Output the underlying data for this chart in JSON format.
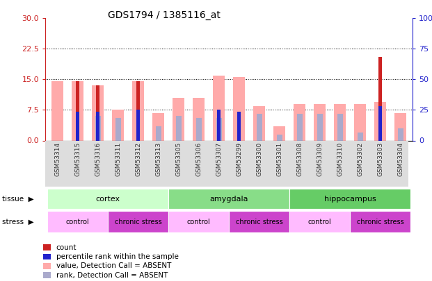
{
  "title": "GDS1794 / 1385116_at",
  "samples": [
    "GSM53314",
    "GSM53315",
    "GSM53316",
    "GSM53311",
    "GSM53312",
    "GSM53313",
    "GSM53305",
    "GSM53306",
    "GSM53307",
    "GSM53299",
    "GSM53300",
    "GSM53301",
    "GSM53308",
    "GSM53309",
    "GSM53310",
    "GSM53302",
    "GSM53303",
    "GSM53304"
  ],
  "pink_bars": [
    14.5,
    14.5,
    13.5,
    7.5,
    14.5,
    6.8,
    10.5,
    10.5,
    16.0,
    15.5,
    8.5,
    3.5,
    9.0,
    9.0,
    9.0,
    9.0,
    9.5,
    6.8
  ],
  "red_bars": [
    0,
    14.5,
    13.5,
    0,
    14.5,
    0,
    0,
    0,
    0,
    0,
    0,
    0,
    0,
    0,
    0,
    0,
    20.5,
    0
  ],
  "blue_bars": [
    0,
    7.0,
    7.0,
    0,
    7.5,
    0,
    0,
    0,
    7.5,
    7.0,
    0,
    0,
    0,
    0,
    0,
    0,
    8.5,
    0
  ],
  "lavender_bars": [
    0,
    0,
    6.0,
    5.5,
    0,
    3.5,
    6.0,
    5.5,
    5.5,
    0,
    6.5,
    1.5,
    6.5,
    6.5,
    6.5,
    2.0,
    0,
    3.0
  ],
  "ylim_left": [
    0,
    30
  ],
  "ylim_right": [
    0,
    100
  ],
  "yticks_left": [
    0,
    7.5,
    15,
    22.5,
    30
  ],
  "yticks_right": [
    0,
    25,
    50,
    75,
    100
  ],
  "tissue_groups": [
    {
      "label": "cortex",
      "start": 0,
      "end": 6,
      "color": "#ccffcc"
    },
    {
      "label": "amygdala",
      "start": 6,
      "end": 12,
      "color": "#88dd88"
    },
    {
      "label": "hippocampus",
      "start": 12,
      "end": 18,
      "color": "#66cc66"
    }
  ],
  "stress_groups": [
    {
      "label": "control",
      "start": 0,
      "end": 3,
      "color": "#ffbbff"
    },
    {
      "label": "chronic stress",
      "start": 3,
      "end": 6,
      "color": "#cc44cc"
    },
    {
      "label": "control",
      "start": 6,
      "end": 9,
      "color": "#ffbbff"
    },
    {
      "label": "chronic stress",
      "start": 9,
      "end": 12,
      "color": "#cc44cc"
    },
    {
      "label": "control",
      "start": 12,
      "end": 15,
      "color": "#ffbbff"
    },
    {
      "label": "chronic stress",
      "start": 15,
      "end": 18,
      "color": "#cc44cc"
    }
  ],
  "color_pink": "#ffaaaa",
  "color_red": "#cc2222",
  "color_blue": "#2222cc",
  "color_lavender": "#aaaacc",
  "bar_width": 0.6,
  "bg_color": "#ffffff",
  "left_axis_color": "#cc2222",
  "right_axis_color": "#2222cc"
}
